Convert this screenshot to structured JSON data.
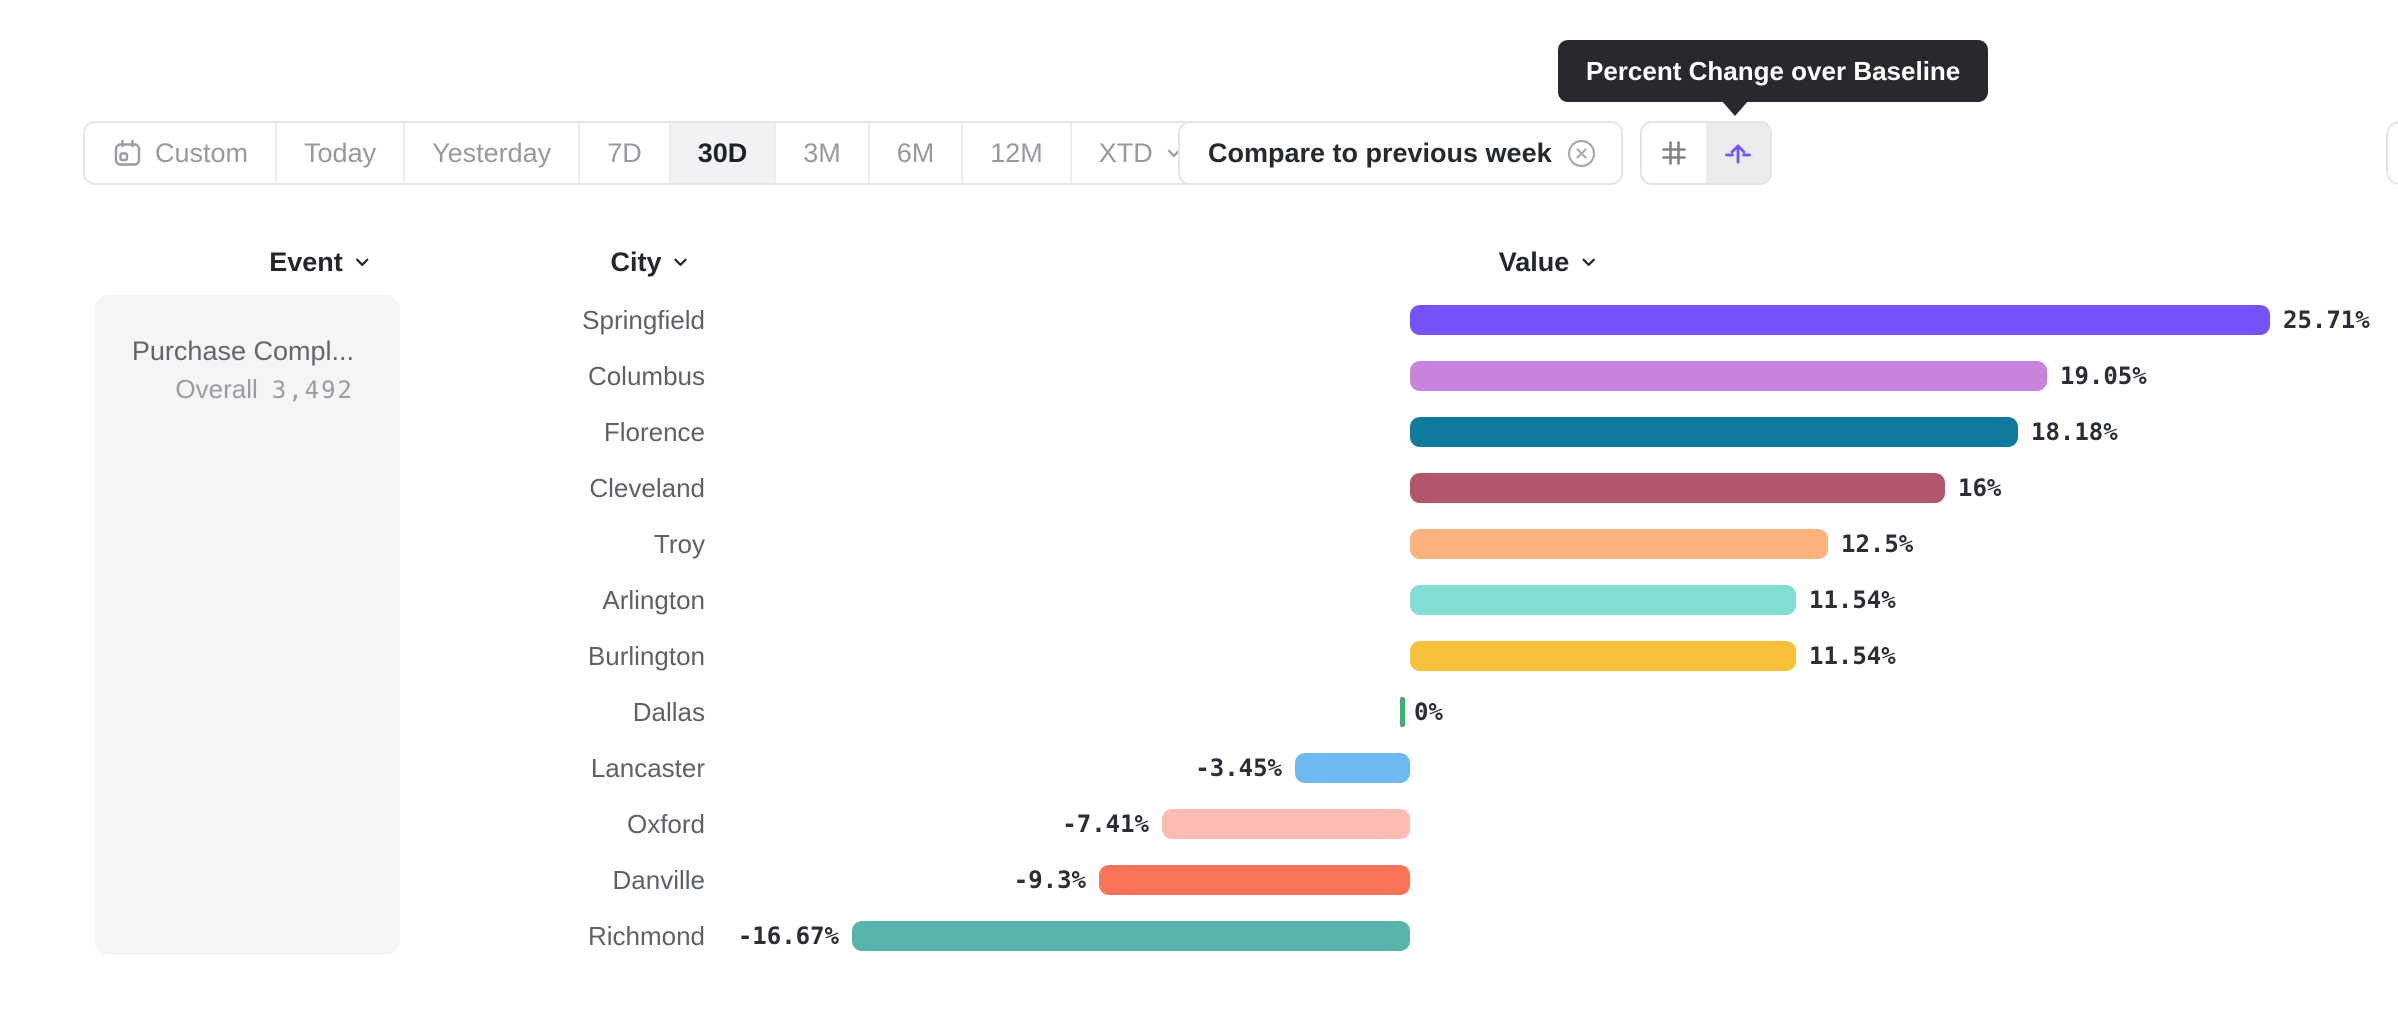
{
  "toolbar": {
    "segments": [
      "Custom",
      "Today",
      "Yesterday",
      "7D",
      "30D",
      "3M",
      "6M",
      "12M",
      "XTD"
    ],
    "selected_segment": "30D",
    "compare_label": "Compare to previous week",
    "icons": [
      "calendar-icon",
      "remove-compare-icon",
      "grid-hash-icon",
      "baseline-arrow-icon"
    ]
  },
  "tooltip": {
    "text": "Percent Change over Baseline"
  },
  "columns": {
    "event": "Event",
    "city": "City",
    "value": "Value"
  },
  "event_panel": {
    "event_name": "Purchase Compl...",
    "overall_label": "Overall",
    "overall_value": "3,492"
  },
  "colors": {
    "accent_purple": "#7352fb",
    "tooltip_bg": "#28282d",
    "selected_bg": "#f2f2f4",
    "panel_bg": "#f5f5f6"
  },
  "chart_data": {
    "type": "bar",
    "orientation": "horizontal",
    "title": "Percent Change over Baseline",
    "categories": [
      "Springfield",
      "Columbus",
      "Florence",
      "Cleveland",
      "Troy",
      "Arlington",
      "Burlington",
      "Dallas",
      "Lancaster",
      "Oxford",
      "Danville",
      "Richmond"
    ],
    "values": [
      25.71,
      19.05,
      18.18,
      16,
      12.5,
      11.54,
      11.54,
      0,
      -3.45,
      -7.41,
      -9.3,
      -16.67
    ],
    "labels": [
      "25.71%",
      "19.05%",
      "18.18%",
      "16%",
      "12.5%",
      "11.54%",
      "11.54%",
      "0%",
      "-3.45%",
      "-7.41%",
      "-9.3%",
      "-16.67%"
    ],
    "bar_colors": [
      "#7552fa",
      "#c883dd",
      "#107a9e",
      "#b2566c",
      "#fdb27e",
      "#82ded2",
      "#f6c03a",
      "#3eae73",
      "#6fb9f2",
      "#fcbcb4",
      "#fd7357",
      "#59b5ab"
    ],
    "xlim": [
      -16.67,
      25.71
    ],
    "value_suffix": "%",
    "grid": false,
    "legend": false
  }
}
